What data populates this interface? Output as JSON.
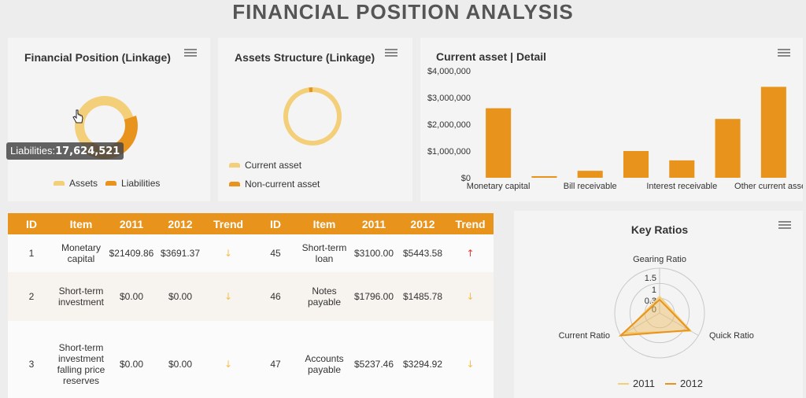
{
  "page_title": "FINANCIAL POSITION ANALYSIS",
  "colors": {
    "assets": "#f3cf7a",
    "liabilities": "#e8931c",
    "bar": "#e8931c",
    "current_asset": "#f3cf7a",
    "non_current_asset": "#e8931c",
    "up": "#e53935",
    "down": "#f3c04a"
  },
  "panels": {
    "financial_position": {
      "title": "Financial Position (Linkage)",
      "tooltip_label": "Liabilities:",
      "tooltip_value": "17,624,521"
    },
    "assets_structure": {
      "title": "Assets Structure (Linkage)"
    },
    "current_asset_detail": {
      "title": "Current asset | Detail"
    },
    "key_ratios": {
      "title": "Key Ratios"
    }
  },
  "chart_data": [
    {
      "type": "pie",
      "title": "Financial Position (Linkage)",
      "variant": "donut",
      "labels": [
        "Assets",
        "Liabilities"
      ],
      "values": [
        60,
        40
      ],
      "legend_position": "bottom",
      "tooltip": {
        "label": "Liabilities",
        "value": "17,624,521"
      }
    },
    {
      "type": "pie",
      "title": "Assets Structure (Linkage)",
      "variant": "donut",
      "labels": [
        "Current asset",
        "Non-current asset"
      ],
      "values": [
        98,
        2
      ],
      "legend_position": "bottom-left"
    },
    {
      "type": "bar",
      "title": "Current asset | Detail",
      "categories": [
        "Monetary capital",
        "",
        "Bill receivable",
        "",
        "Interest receivable",
        "",
        "Other current assets"
      ],
      "values": [
        2600000,
        60000,
        260000,
        1000000,
        650000,
        2200000,
        3400000
      ],
      "xlabel": "",
      "ylabel": "",
      "ylim": [
        0,
        4000000
      ],
      "y_ticks": [
        "$0",
        "$1,000,000",
        "$2,000,000",
        "$3,000,000",
        "$4,000,000"
      ]
    },
    {
      "type": "radar",
      "title": "Key Ratios",
      "axes": [
        "Gearing Ratio",
        "Quick Ratio",
        "Current Ratio"
      ],
      "tick_labels": [
        "0",
        "0.3",
        "1",
        "1.5"
      ],
      "max": 1.5,
      "series": [
        {
          "name": "2011",
          "values": [
            0.55,
            1.2,
            1.35
          ]
        },
        {
          "name": "2012",
          "values": [
            0.45,
            1.15,
            1.5
          ]
        }
      ],
      "legend_position": "bottom"
    }
  ],
  "table": {
    "headers": [
      "ID",
      "Item",
      "2011",
      "2012",
      "Trend",
      "ID",
      "Item",
      "2011",
      "2012",
      "Trend"
    ],
    "rows": [
      {
        "id1": "1",
        "item1": "Monetary capital",
        "a1": "$21409.86",
        "b1": "$3691.37",
        "t1": "↓",
        "id2": "45",
        "item2": "Short-term loan",
        "a2": "$3100.00",
        "b2": "$5443.58",
        "t2": "↑"
      },
      {
        "id1": "2",
        "item1": "Short-term investment",
        "a1": "$0.00",
        "b1": "$0.00",
        "t1": "↓",
        "id2": "46",
        "item2": "Notes payable",
        "a2": "$1796.00",
        "b2": "$1485.78",
        "t2": "↓"
      },
      {
        "id1": "3",
        "item1": "Short-term investment falling price reserves",
        "a1": "$0.00",
        "b1": "$0.00",
        "t1": "↓",
        "id2": "47",
        "item2": "Accounts payable",
        "a2": "$5237.46",
        "b2": "$3294.92",
        "t2": "↓"
      }
    ]
  }
}
